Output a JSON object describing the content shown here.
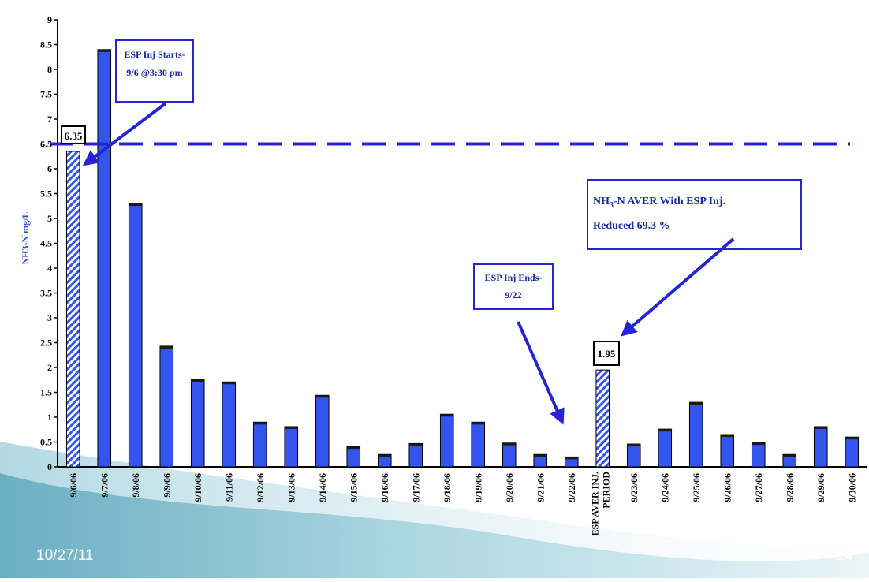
{
  "footer": {
    "date": "10/27/11",
    "page": "14"
  },
  "colors": {
    "bar": "#3355ee",
    "bar_dark": "#1a1a1a",
    "accent": "#2525d5",
    "label_blue": "#2244cc"
  },
  "chart_data": {
    "type": "bar",
    "categories": [
      "9/6/06",
      "9/7/06",
      "9/8/06",
      "9/9/06",
      "9/10/06",
      "9/11/06",
      "9/12/06",
      "9/13/06",
      "9/14/06",
      "9/15/06",
      "9/16/06",
      "9/17/06",
      "9/18/06",
      "9/19/06",
      "9/20/06",
      "9/21/06",
      "9/22/06",
      "ESP AVER INJ. PERIOD",
      "9/23/06",
      "9/24/06",
      "9/25/06",
      "9/26/06",
      "9/27/06",
      "9/28/06",
      "9/29/06",
      "9/30/06"
    ],
    "values": [
      6.35,
      8.4,
      5.3,
      2.43,
      1.76,
      1.71,
      0.9,
      0.81,
      1.44,
      0.41,
      0.25,
      0.47,
      1.06,
      0.9,
      0.48,
      0.25,
      0.2,
      1.95,
      0.46,
      0.76,
      1.3,
      0.65,
      0.49,
      0.25,
      0.81,
      0.6
    ],
    "hatched_bars": [
      "9/6/06",
      "ESP AVER INJ. PERIOD"
    ],
    "ylabel": "NH3-N mg/L",
    "ylim": [
      0,
      9
    ],
    "yticks": [
      "0",
      "0.5",
      "1",
      "1.5",
      "2",
      "2.5",
      "3",
      "3.5",
      "4",
      "4.5",
      "5",
      "5.5",
      "6",
      "6.5",
      "7",
      "7.5",
      "8",
      "8.5",
      "9"
    ],
    "reference_line": {
      "y": 6.5,
      "style": "dashed"
    },
    "data_labels": [
      {
        "category": "9/6/06",
        "text": "6.35"
      },
      {
        "category": "ESP AVER INJ. PERIOD",
        "text": "1.95"
      }
    ],
    "annotations": {
      "start": [
        "ESP Inj Starts-",
        "9/6 @3:30 pm"
      ],
      "end": [
        "ESP Inj Ends-",
        "9/22"
      ],
      "reduction_line1_pre": "NH",
      "reduction_line1_sub": "3",
      "reduction_line1_post": "-N AVER With ESP Inj.",
      "reduction_line2": "Reduced 69.3 %"
    },
    "grid": false
  }
}
